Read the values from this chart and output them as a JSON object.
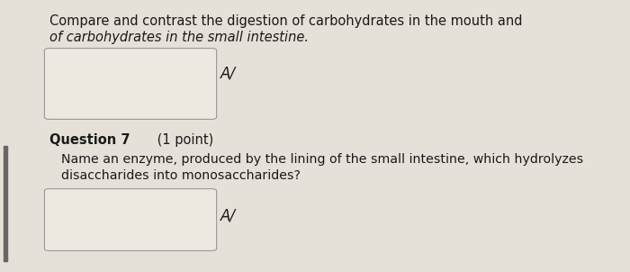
{
  "bg_color": "#e5e1d8",
  "box_color": "#ede9e0",
  "box_border_color": "#999999",
  "text_color": "#1a1a1a",
  "font_size": 10.5,
  "font_size_body": 10.2,
  "left_bar_color": "#666666",
  "arrow_symbol": "A/",
  "title_normal": "Compare and contrast the digestion of carbohydrates in the mouth and ",
  "title_italic": "the digestion",
  "line2_italic": "of carbohydrates in the small intestine.",
  "question_bold": "Question 7",
  "question_normal": " (1 point)",
  "body_line1": "Name an enzyme, produced by the lining of the small intestine, which hydrolyzes",
  "body_line2": "disaccharides into monosaccharides?"
}
